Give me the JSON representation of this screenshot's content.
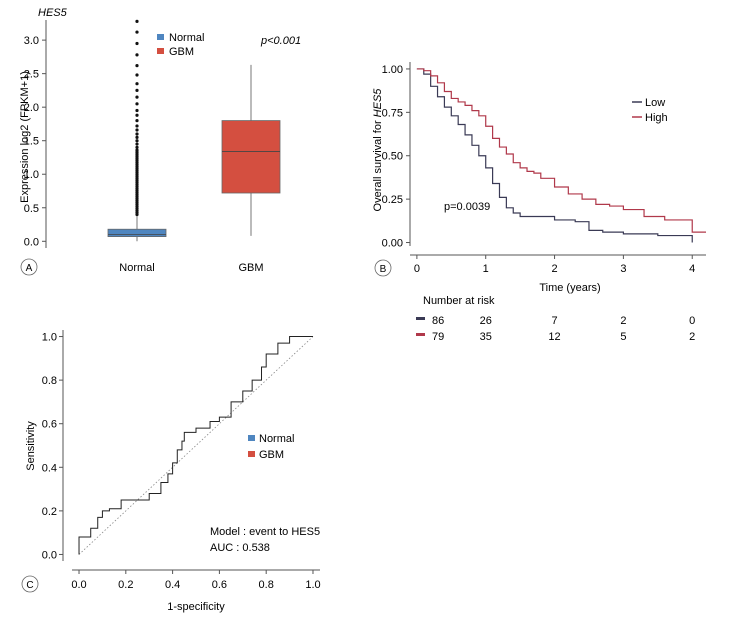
{
  "colors": {
    "normal": "#4f86c0",
    "gbm": "#d44f40",
    "low": "#3a3a55",
    "high": "#b0384a",
    "axis": "#555555",
    "text": "#222222"
  },
  "chart_data": [
    {
      "id": "A",
      "panel_label": "A",
      "type": "box",
      "gene_label": "HES5",
      "ylabel": "Expression log2 (FPKM+1)",
      "ylim": [
        -0.1,
        3.3
      ],
      "yticks": [
        0.0,
        0.5,
        1.0,
        1.5,
        2.0,
        2.5,
        3.0
      ],
      "ytick_labels": [
        "0.0",
        "0.5",
        "1.0",
        "1.5",
        "2.0",
        "2.5",
        "3.0"
      ],
      "categories": [
        "Normal",
        "GBM"
      ],
      "legend": [
        "Normal",
        "GBM"
      ],
      "annotation": "p<0.001",
      "boxes": [
        {
          "name": "Normal",
          "min": 0.0,
          "q1": 0.07,
          "median": 0.1,
          "q3": 0.18,
          "max": 0.38
        },
        {
          "name": "GBM",
          "min": 0.08,
          "q1": 0.72,
          "median": 1.34,
          "q3": 1.8,
          "max": 2.63
        }
      ],
      "outliers_normal": [
        0.4,
        0.43,
        0.46,
        0.49,
        0.52,
        0.55,
        0.58,
        0.61,
        0.64,
        0.67,
        0.7,
        0.73,
        0.76,
        0.79,
        0.82,
        0.85,
        0.88,
        0.91,
        0.94,
        0.97,
        1.0,
        1.03,
        1.06,
        1.09,
        1.12,
        1.15,
        1.18,
        1.21,
        1.24,
        1.27,
        1.3,
        1.33,
        1.36,
        1.4,
        1.45,
        1.5,
        1.55,
        1.6,
        1.66,
        1.72,
        1.8,
        1.88,
        1.95,
        2.05,
        2.15,
        2.25,
        2.35,
        2.48,
        2.62,
        2.78,
        2.95,
        3.12,
        3.28
      ]
    },
    {
      "id": "B",
      "panel_label": "B",
      "type": "line",
      "subtype": "kaplan-meier",
      "ylabel_prefix": "Overall survival for ",
      "ylabel_gene": "HES5",
      "xlabel": "Time (years)",
      "xlim": [
        -0.1,
        4.2
      ],
      "ylim": [
        -0.02,
        1.04
      ],
      "xticks": [
        0,
        1,
        2,
        3,
        4
      ],
      "xtick_labels": [
        "0",
        "1",
        "2",
        "3",
        "4"
      ],
      "yticks": [
        0.0,
        0.25,
        0.5,
        0.75,
        1.0
      ],
      "ytick_labels": [
        "0.00",
        "0.25",
        "0.50",
        "0.75",
        "1.00"
      ],
      "legend": [
        "Low",
        "High"
      ],
      "annotation": "p=0.0039",
      "series": [
        {
          "name": "Low",
          "x": [
            0,
            0.1,
            0.2,
            0.3,
            0.4,
            0.5,
            0.6,
            0.7,
            0.8,
            0.9,
            1.0,
            1.1,
            1.2,
            1.3,
            1.4,
            1.5,
            1.7,
            2.0,
            2.3,
            2.5,
            2.7,
            3.0,
            3.5,
            3.98,
            4.0
          ],
          "y": [
            1.0,
            0.97,
            0.9,
            0.84,
            0.78,
            0.73,
            0.68,
            0.62,
            0.56,
            0.5,
            0.43,
            0.34,
            0.26,
            0.2,
            0.17,
            0.15,
            0.15,
            0.13,
            0.12,
            0.07,
            0.06,
            0.05,
            0.04,
            0.04,
            0.0
          ]
        },
        {
          "name": "High",
          "x": [
            0,
            0.1,
            0.2,
            0.3,
            0.4,
            0.5,
            0.6,
            0.7,
            0.8,
            0.9,
            1.0,
            1.1,
            1.2,
            1.3,
            1.4,
            1.5,
            1.6,
            1.7,
            1.8,
            2.0,
            2.2,
            2.4,
            2.6,
            2.8,
            3.0,
            3.3,
            3.6,
            3.9,
            4.0,
            4.2
          ],
          "y": [
            1.0,
            0.99,
            0.96,
            0.92,
            0.87,
            0.83,
            0.81,
            0.79,
            0.76,
            0.73,
            0.67,
            0.6,
            0.55,
            0.51,
            0.46,
            0.43,
            0.41,
            0.4,
            0.37,
            0.32,
            0.28,
            0.25,
            0.22,
            0.21,
            0.19,
            0.15,
            0.13,
            0.13,
            0.06,
            0.06
          ]
        }
      ],
      "risk_table": {
        "title": "Number at risk",
        "times": [
          0,
          1,
          2,
          3,
          4
        ],
        "rows": [
          {
            "name": "Low",
            "values": [
              "86",
              "26",
              "7",
              "2",
              "0"
            ]
          },
          {
            "name": "High",
            "values": [
              "79",
              "35",
              "12",
              "5",
              "2"
            ]
          }
        ]
      }
    },
    {
      "id": "C",
      "panel_label": "C",
      "type": "line",
      "subtype": "roc",
      "xlabel": "1-specificity",
      "ylabel": "Sensitivity",
      "xlim": [
        -0.03,
        1.03
      ],
      "ylim": [
        -0.03,
        1.03
      ],
      "xticks": [
        0.0,
        0.2,
        0.4,
        0.6,
        0.8,
        1.0
      ],
      "xtick_labels": [
        "0.0",
        "0.2",
        "0.4",
        "0.6",
        "0.8",
        "1.0"
      ],
      "yticks": [
        0.0,
        0.2,
        0.4,
        0.6,
        0.8,
        1.0
      ],
      "ytick_labels": [
        "0.0",
        "0.2",
        "0.4",
        "0.6",
        "0.8",
        "1.0"
      ],
      "legend": [
        "Normal",
        "GBM"
      ],
      "annotation_model": "Model : event to HES5",
      "annotation_auc": "AUC : 0.538",
      "reference_line": true,
      "series": [
        {
          "name": "ROC",
          "x": [
            0.0,
            0.0,
            0.05,
            0.05,
            0.08,
            0.08,
            0.1,
            0.1,
            0.13,
            0.13,
            0.18,
            0.18,
            0.3,
            0.3,
            0.35,
            0.35,
            0.38,
            0.38,
            0.4,
            0.4,
            0.42,
            0.42,
            0.44,
            0.44,
            0.45,
            0.45,
            0.5,
            0.5,
            0.56,
            0.56,
            0.6,
            0.6,
            0.65,
            0.65,
            0.7,
            0.7,
            0.74,
            0.74,
            0.78,
            0.78,
            0.8,
            0.8,
            0.85,
            0.85,
            0.9,
            0.9,
            1.0
          ],
          "y": [
            0.0,
            0.08,
            0.08,
            0.12,
            0.12,
            0.17,
            0.17,
            0.2,
            0.2,
            0.21,
            0.21,
            0.25,
            0.25,
            0.28,
            0.28,
            0.33,
            0.33,
            0.37,
            0.37,
            0.42,
            0.42,
            0.48,
            0.48,
            0.52,
            0.52,
            0.56,
            0.56,
            0.58,
            0.58,
            0.61,
            0.61,
            0.63,
            0.63,
            0.7,
            0.7,
            0.75,
            0.75,
            0.8,
            0.8,
            0.86,
            0.86,
            0.92,
            0.92,
            0.97,
            0.97,
            1.0,
            1.0
          ]
        }
      ]
    }
  ]
}
